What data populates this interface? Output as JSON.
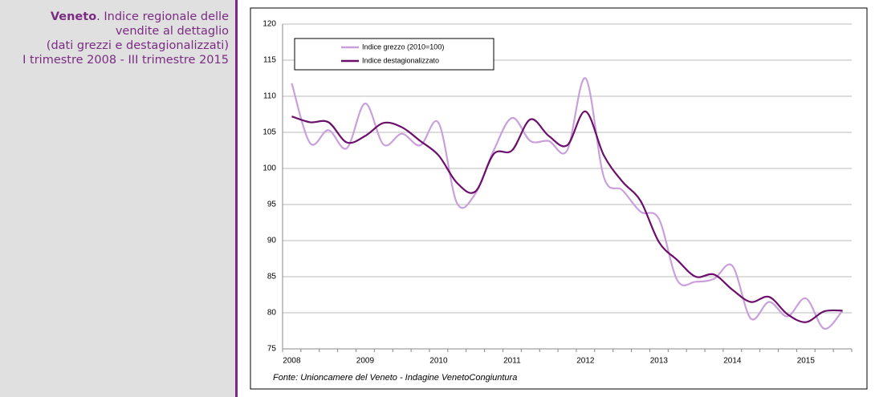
{
  "chart_data": {
    "type": "line",
    "title_bold": "Veneto",
    "title_lines": [
      ". Indice regionale delle",
      "vendite al dettaglio",
      "(dati grezzi e destagionalizzati)",
      "I trimestre 2008 - III trimestre 2015"
    ],
    "source": "Fonte: Unioncamere del Veneto - Indagine VenetoCongiuntura",
    "categories": [
      "2008",
      null,
      null,
      null,
      "2009",
      null,
      null,
      null,
      "2010",
      null,
      null,
      null,
      "2011",
      null,
      null,
      null,
      "2012",
      null,
      null,
      null,
      "2013",
      null,
      null,
      null,
      "2014",
      null,
      null,
      null,
      "2015",
      null,
      null
    ],
    "series": [
      {
        "name": "Indice grezzo (2010=100)",
        "color": "#c9a0dc",
        "values": [
          111.8,
          103.5,
          105.3,
          102.8,
          109,
          103.3,
          104.8,
          103.2,
          106.3,
          95.2,
          96.5,
          102.5,
          107,
          103.8,
          103.8,
          102.5,
          112.5,
          98.8,
          97,
          94,
          93,
          84.5,
          84.3,
          84.7,
          86.5,
          79.2,
          81.5,
          79.5,
          82,
          77.8,
          80.3
        ]
      },
      {
        "name": "Indice destagionalizzato",
        "color": "#6b0f6b",
        "values": [
          107.2,
          106.4,
          106.4,
          103.6,
          104.5,
          106.3,
          105.7,
          103.8,
          101.8,
          98,
          96.8,
          102,
          102.5,
          106.8,
          104.5,
          103.2,
          107.9,
          101.8,
          98.2,
          95.5,
          89.8,
          87.3,
          85,
          85.3,
          83.2,
          81.5,
          82.2,
          79.8,
          78.7,
          80.2,
          80.3
        ]
      }
    ],
    "ylim": [
      75,
      120
    ],
    "yticks": [
      75,
      80,
      85,
      90,
      95,
      100,
      105,
      110,
      115,
      120
    ],
    "grid": true,
    "legend": "top-left"
  }
}
